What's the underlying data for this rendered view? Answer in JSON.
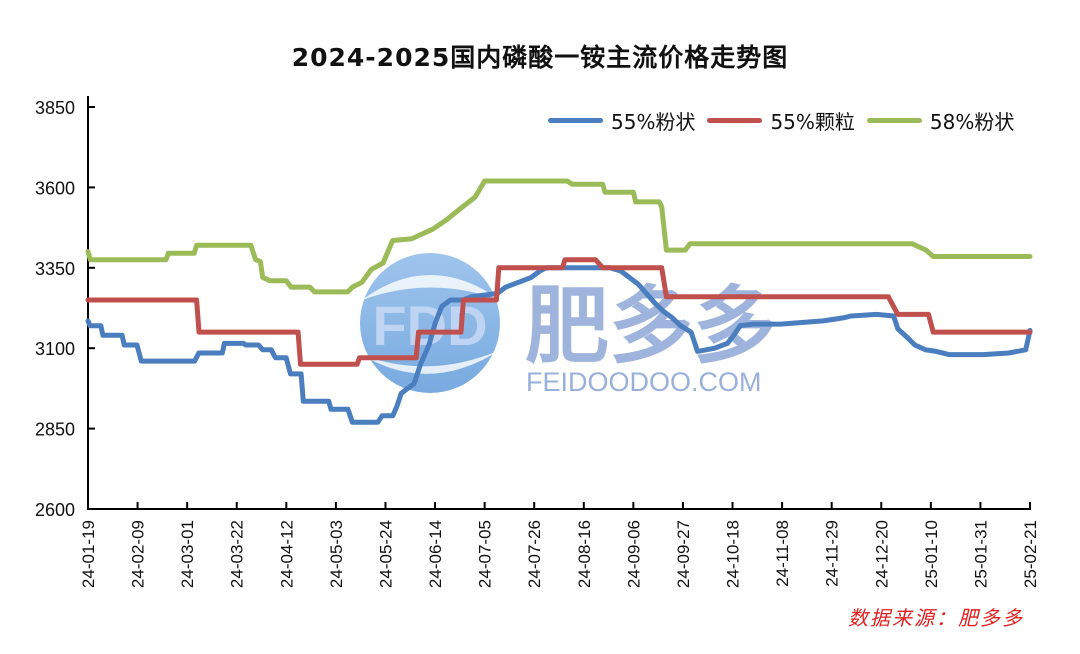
{
  "chart_data": {
    "type": "line",
    "title": "2024-2025国内磷酸一铵主流价格走势图",
    "xlabel": "",
    "ylabel": "",
    "ylim": [
      2600,
      3850
    ],
    "yticks": [
      2600,
      2850,
      3100,
      3350,
      3600,
      3850
    ],
    "grid": false,
    "legend_position": "top-right, inside",
    "x_tick_labels": [
      "24-01-19",
      "24-02-09",
      "24-03-01",
      "24-03-22",
      "24-04-12",
      "24-05-03",
      "24-05-24",
      "24-06-14",
      "24-07-05",
      "24-07-26",
      "24-08-16",
      "24-09-06",
      "24-09-27",
      "24-10-18",
      "24-11-08",
      "24-11-29",
      "24-12-20",
      "25-01-10",
      "25-01-31",
      "25-02-21"
    ],
    "x_range_days": [
      0,
      399
    ],
    "series": [
      {
        "name": "55%粉状",
        "color": "#4a7ebf",
        "points": [
          [
            0,
            3185
          ],
          [
            1,
            3170
          ],
          [
            6,
            3170
          ],
          [
            7,
            3140
          ],
          [
            16,
            3140
          ],
          [
            17,
            3110
          ],
          [
            23,
            3110
          ],
          [
            25,
            3060
          ],
          [
            50,
            3060
          ],
          [
            52,
            3085
          ],
          [
            63,
            3085
          ],
          [
            64,
            3115
          ],
          [
            73,
            3115
          ],
          [
            74,
            3110
          ],
          [
            80,
            3110
          ],
          [
            82,
            3095
          ],
          [
            86,
            3095
          ],
          [
            88,
            3070
          ],
          [
            93,
            3070
          ],
          [
            95,
            3020
          ],
          [
            100,
            3020
          ],
          [
            101,
            2935
          ],
          [
            113,
            2935
          ],
          [
            114,
            2910
          ],
          [
            122,
            2910
          ],
          [
            124,
            2870
          ],
          [
            136,
            2870
          ],
          [
            138,
            2890
          ],
          [
            143,
            2890
          ],
          [
            145,
            2920
          ],
          [
            147,
            2960
          ],
          [
            150,
            2975
          ],
          [
            153,
            2990
          ],
          [
            156,
            3050
          ],
          [
            160,
            3110
          ],
          [
            163,
            3180
          ],
          [
            166,
            3230
          ],
          [
            168,
            3240
          ],
          [
            170,
            3250
          ],
          [
            176,
            3250
          ],
          [
            180,
            3260
          ],
          [
            186,
            3265
          ],
          [
            192,
            3270
          ],
          [
            196,
            3290
          ],
          [
            204,
            3310
          ],
          [
            208,
            3320
          ],
          [
            212,
            3340
          ],
          [
            215,
            3350
          ],
          [
            245,
            3350
          ],
          [
            250,
            3340
          ],
          [
            254,
            3320
          ],
          [
            258,
            3300
          ],
          [
            262,
            3270
          ],
          [
            266,
            3240
          ],
          [
            270,
            3215
          ],
          [
            274,
            3195
          ],
          [
            278,
            3170
          ],
          [
            283,
            3150
          ],
          [
            286,
            3090
          ],
          [
            294,
            3100
          ],
          [
            300,
            3115
          ],
          [
            303,
            3140
          ],
          [
            306,
            3170
          ],
          [
            312,
            3175
          ],
          [
            325,
            3175
          ],
          [
            335,
            3180
          ],
          [
            345,
            3185
          ],
          [
            355,
            3195
          ],
          [
            358,
            3200
          ],
          [
            370,
            3205
          ],
          [
            378,
            3200
          ],
          [
            380,
            3160
          ],
          [
            385,
            3130
          ],
          [
            388,
            3110
          ],
          [
            393,
            3095
          ],
          [
            398,
            3090
          ],
          [
            404,
            3080
          ],
          [
            420,
            3080
          ],
          [
            432,
            3085
          ],
          [
            440,
            3095
          ],
          [
            442,
            3155
          ]
        ]
      },
      {
        "name": "55%颗粒",
        "color": "#c0504d",
        "points": [
          [
            0,
            3250
          ],
          [
            46,
            3250
          ],
          [
            47,
            3150
          ],
          [
            89,
            3150
          ],
          [
            90,
            3050
          ],
          [
            114,
            3050
          ],
          [
            115,
            3070
          ],
          [
            139,
            3070
          ],
          [
            140,
            3150
          ],
          [
            158,
            3150
          ],
          [
            159,
            3250
          ],
          [
            173,
            3250
          ],
          [
            174,
            3350
          ],
          [
            201,
            3350
          ],
          [
            202,
            3375
          ],
          [
            215,
            3375
          ],
          [
            218,
            3350
          ],
          [
            243,
            3350
          ],
          [
            245,
            3260
          ],
          [
            339,
            3260
          ],
          [
            343,
            3205
          ],
          [
            356,
            3205
          ],
          [
            358,
            3150
          ],
          [
            399,
            3150
          ]
        ]
      },
      {
        "name": "58%粉状",
        "color": "#9bbb59",
        "points": [
          [
            0,
            3400
          ],
          [
            1,
            3375
          ],
          [
            33,
            3375
          ],
          [
            34,
            3395
          ],
          [
            45,
            3395
          ],
          [
            46,
            3420
          ],
          [
            69,
            3420
          ],
          [
            71,
            3375
          ],
          [
            73,
            3370
          ],
          [
            74,
            3320
          ],
          [
            77,
            3310
          ],
          [
            84,
            3310
          ],
          [
            86,
            3290
          ],
          [
            94,
            3290
          ],
          [
            96,
            3275
          ],
          [
            110,
            3275
          ],
          [
            112,
            3290
          ],
          [
            116,
            3305
          ],
          [
            120,
            3345
          ],
          [
            125,
            3365
          ],
          [
            129,
            3435
          ],
          [
            137,
            3440
          ],
          [
            146,
            3470
          ],
          [
            152,
            3500
          ],
          [
            157,
            3530
          ],
          [
            164,
            3570
          ],
          [
            168,
            3620
          ],
          [
            203,
            3620
          ],
          [
            205,
            3610
          ],
          [
            218,
            3610
          ],
          [
            219,
            3585
          ],
          [
            231,
            3585
          ],
          [
            232,
            3555
          ],
          [
            242,
            3555
          ],
          [
            243,
            3540
          ],
          [
            245,
            3405
          ],
          [
            253,
            3405
          ],
          [
            255,
            3425
          ],
          [
            349,
            3425
          ],
          [
            352,
            3415
          ],
          [
            355,
            3405
          ],
          [
            358,
            3385
          ],
          [
            399,
            3385
          ]
        ]
      }
    ]
  },
  "title": "2024-2025国内磷酸一铵主流价格走势图",
  "legend": [
    {
      "label": "55%粉状",
      "color": "#4a7ebf"
    },
    {
      "label": "55%颗粒",
      "color": "#c0504d"
    },
    {
      "label": "58%粉状",
      "color": "#9bbb59"
    }
  ],
  "watermark": {
    "logo_text": "FDD",
    "brand_cn": "肥多多",
    "brand_en": "FEIDOODOO.COM"
  },
  "source_note": "数据来源：肥多多"
}
